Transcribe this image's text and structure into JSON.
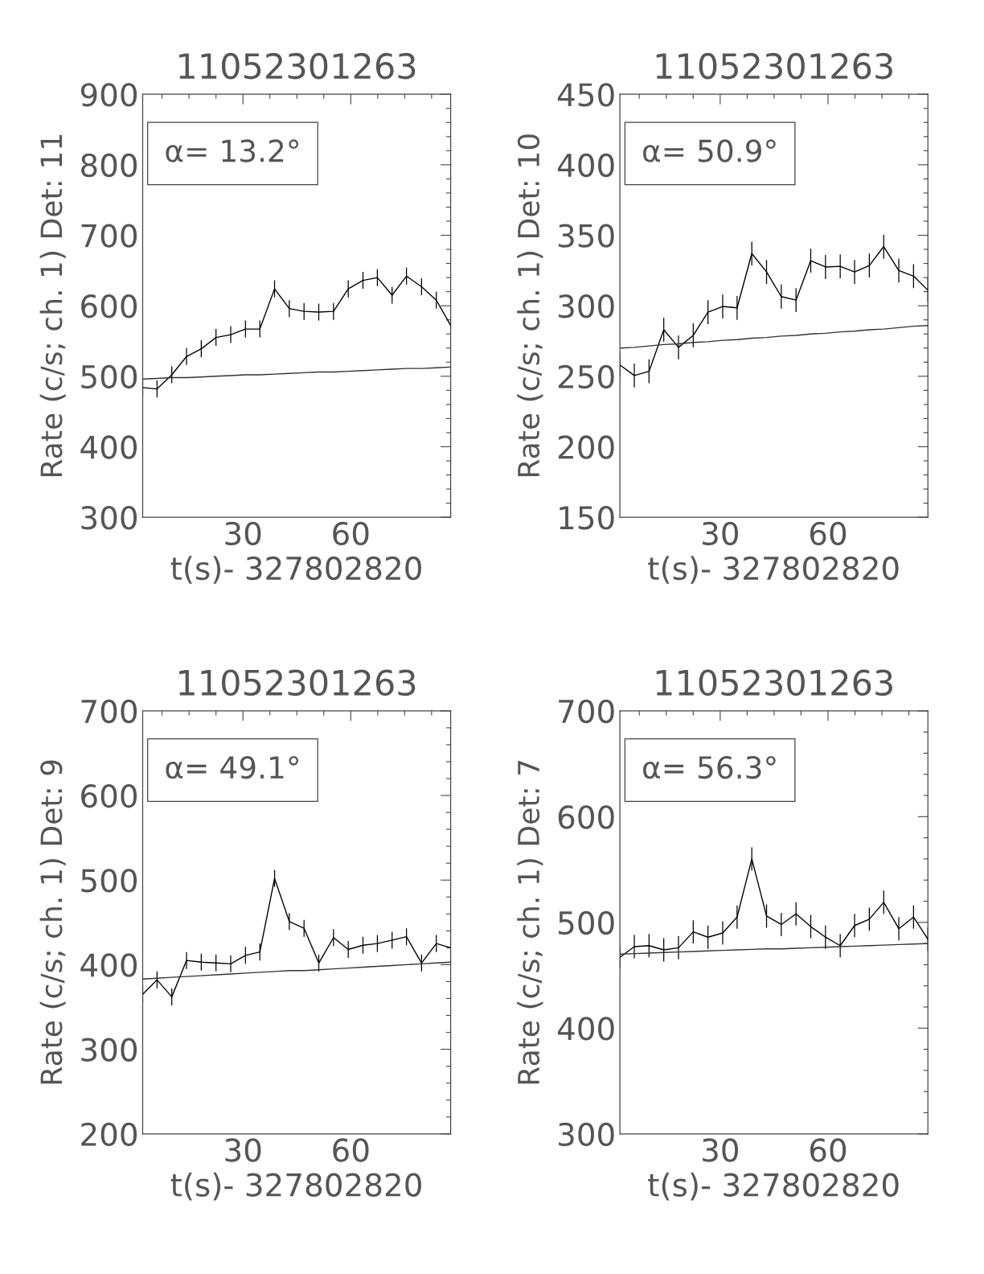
{
  "chart_data": [
    {
      "type": "line",
      "title": "11052301263",
      "xlabel": "t(s)- 327802820",
      "ylabel": "Rate (c/s; ch. 1) Det: 11",
      "annotations": [
        "α= 13.2°"
      ],
      "x": [
        2.1,
        6.1,
        10.2,
        14.3,
        18.4,
        22.5,
        26.6,
        30.7,
        34.7,
        38.8,
        42.9,
        47.0,
        51.1,
        55.2,
        59.3,
        63.4,
        67.4,
        71.5,
        75.5,
        79.7,
        83.8,
        87.8
      ],
      "xlim": [
        2.1,
        87.8
      ],
      "xticks": [
        30,
        60
      ],
      "ylim": [
        300,
        900
      ],
      "yticks": [
        300,
        400,
        500,
        600,
        700,
        800,
        900
      ],
      "marker": "none",
      "line_style": "solid",
      "series": [
        {
          "color": "#000000",
          "values": [
            484,
            482,
            502,
            528,
            539,
            555,
            559,
            567,
            567,
            624,
            596,
            592,
            591,
            592,
            624,
            636,
            640,
            615,
            642,
            627,
            608,
            572
          ],
          "errors": [
            12,
            12,
            12,
            12,
            12,
            12,
            12,
            12,
            12,
            12,
            12,
            12,
            12,
            12,
            12,
            12,
            12,
            12,
            12,
            12,
            12,
            12
          ]
        },
        {
          "type": "line",
          "color": "#333333",
          "values": [
            496,
            497,
            498,
            498,
            499,
            500,
            501,
            502,
            502,
            503,
            504,
            505,
            506,
            506,
            507,
            508,
            509,
            510,
            511,
            511,
            512,
            513
          ]
        }
      ]
    },
    {
      "type": "line",
      "title": "11052301263",
      "xlabel": "t(s)- 327802820",
      "ylabel": "Rate (c/s; ch. 1) Det: 10",
      "annotations": [
        "α= 50.9°"
      ],
      "x": [
        2.1,
        6.1,
        10.2,
        14.3,
        18.4,
        22.5,
        26.6,
        30.7,
        34.7,
        38.8,
        42.9,
        47.0,
        51.1,
        55.2,
        59.3,
        63.4,
        67.4,
        71.5,
        75.5,
        79.7,
        83.8,
        87.8
      ],
      "xlim": [
        2.1,
        87.8
      ],
      "xticks": [
        30,
        60
      ],
      "ylim": [
        150,
        450
      ],
      "yticks": [
        150,
        200,
        250,
        300,
        350,
        400,
        450
      ],
      "marker": "none",
      "line_style": "solid",
      "series": [
        {
          "color": "#000000",
          "values": [
            258,
            250.5,
            253.5,
            283,
            270.5,
            279,
            295.5,
            299.5,
            298.5,
            337,
            324,
            306.5,
            304,
            332,
            327.5,
            328,
            324,
            328.5,
            342,
            325,
            321,
            311
          ],
          "errors": [
            8.5,
            8.5,
            8.5,
            8.5,
            8.5,
            8.5,
            8.5,
            8.5,
            8.5,
            8.5,
            8.5,
            8.5,
            8.5,
            8.5,
            8.5,
            8.5,
            8.5,
            8.5,
            8.5,
            8.5,
            8.5,
            8.5
          ]
        },
        {
          "type": "line",
          "color": "#333333",
          "values": [
            270,
            270.5,
            271.5,
            272.5,
            273,
            274,
            274.5,
            275.5,
            276,
            277,
            277.5,
            278.5,
            279,
            280,
            280.5,
            281.5,
            282,
            283,
            283.5,
            284.5,
            285.5,
            286
          ]
        }
      ]
    },
    {
      "type": "line",
      "title": "11052301263",
      "xlabel": "t(s)- 327802820",
      "ylabel": "Rate (c/s; ch. 1) Det: 9",
      "annotations": [
        "α= 49.1°"
      ],
      "x": [
        2.1,
        6.1,
        10.2,
        14.3,
        18.4,
        22.5,
        26.6,
        30.7,
        34.7,
        38.8,
        42.9,
        47.0,
        51.1,
        55.2,
        59.3,
        63.4,
        67.4,
        71.5,
        75.5,
        79.7,
        83.8,
        87.8
      ],
      "xlim": [
        2.1,
        87.8
      ],
      "xticks": [
        30,
        60
      ],
      "ylim": [
        200,
        700
      ],
      "yticks": [
        200,
        300,
        400,
        500,
        600,
        700
      ],
      "marker": "none",
      "line_style": "solid",
      "series": [
        {
          "color": "#000000",
          "values": [
            365,
            382,
            362,
            405,
            403,
            402,
            401,
            411,
            415,
            502,
            451,
            443,
            402,
            432,
            418,
            423,
            425,
            429,
            433,
            402,
            425,
            420
          ],
          "errors": [
            10,
            10,
            10,
            10,
            10,
            10,
            10,
            10,
            10,
            10,
            10,
            10,
            10,
            10,
            10,
            10,
            10,
            10,
            10,
            10,
            10,
            10
          ]
        },
        {
          "type": "line",
          "color": "#333333",
          "values": [
            383,
            384,
            385,
            386,
            387,
            388,
            389,
            390,
            391,
            392,
            393,
            393,
            394,
            395,
            396,
            397,
            398,
            399,
            400,
            401,
            402,
            403
          ]
        }
      ]
    },
    {
      "type": "line",
      "title": "11052301263",
      "xlabel": "t(s)- 327802820",
      "ylabel": "Rate (c/s; ch. 1) Det: 7",
      "annotations": [
        "α= 56.3°"
      ],
      "x": [
        2.1,
        6.1,
        10.2,
        14.3,
        18.4,
        22.5,
        26.6,
        30.7,
        34.7,
        38.8,
        42.9,
        47.0,
        51.1,
        55.2,
        59.3,
        63.4,
        67.4,
        71.5,
        75.5,
        79.7,
        83.8,
        87.8
      ],
      "xlim": [
        2.1,
        87.8
      ],
      "xticks": [
        30,
        60
      ],
      "ylim": [
        300,
        700
      ],
      "yticks": [
        300,
        400,
        500,
        600,
        700
      ],
      "marker": "none",
      "line_style": "solid",
      "series": [
        {
          "color": "#000000",
          "values": [
            467,
            477,
            478,
            474,
            476,
            491,
            486,
            490,
            505,
            560,
            506,
            498,
            508,
            496,
            486,
            478,
            497,
            503,
            519,
            494,
            505,
            484
          ],
          "errors": [
            11,
            11,
            11,
            11,
            11,
            11,
            11,
            11,
            11,
            11,
            11,
            11,
            11,
            11,
            11,
            11,
            11,
            11,
            11,
            11,
            11,
            11
          ]
        },
        {
          "type": "line",
          "color": "#333333",
          "values": [
            470,
            470.5,
            471,
            471.5,
            472,
            472.5,
            473,
            473.5,
            474,
            474.5,
            475,
            475,
            475.5,
            476,
            476.5,
            477,
            477.5,
            478,
            478.5,
            479,
            479.5,
            480
          ]
        }
      ]
    }
  ]
}
